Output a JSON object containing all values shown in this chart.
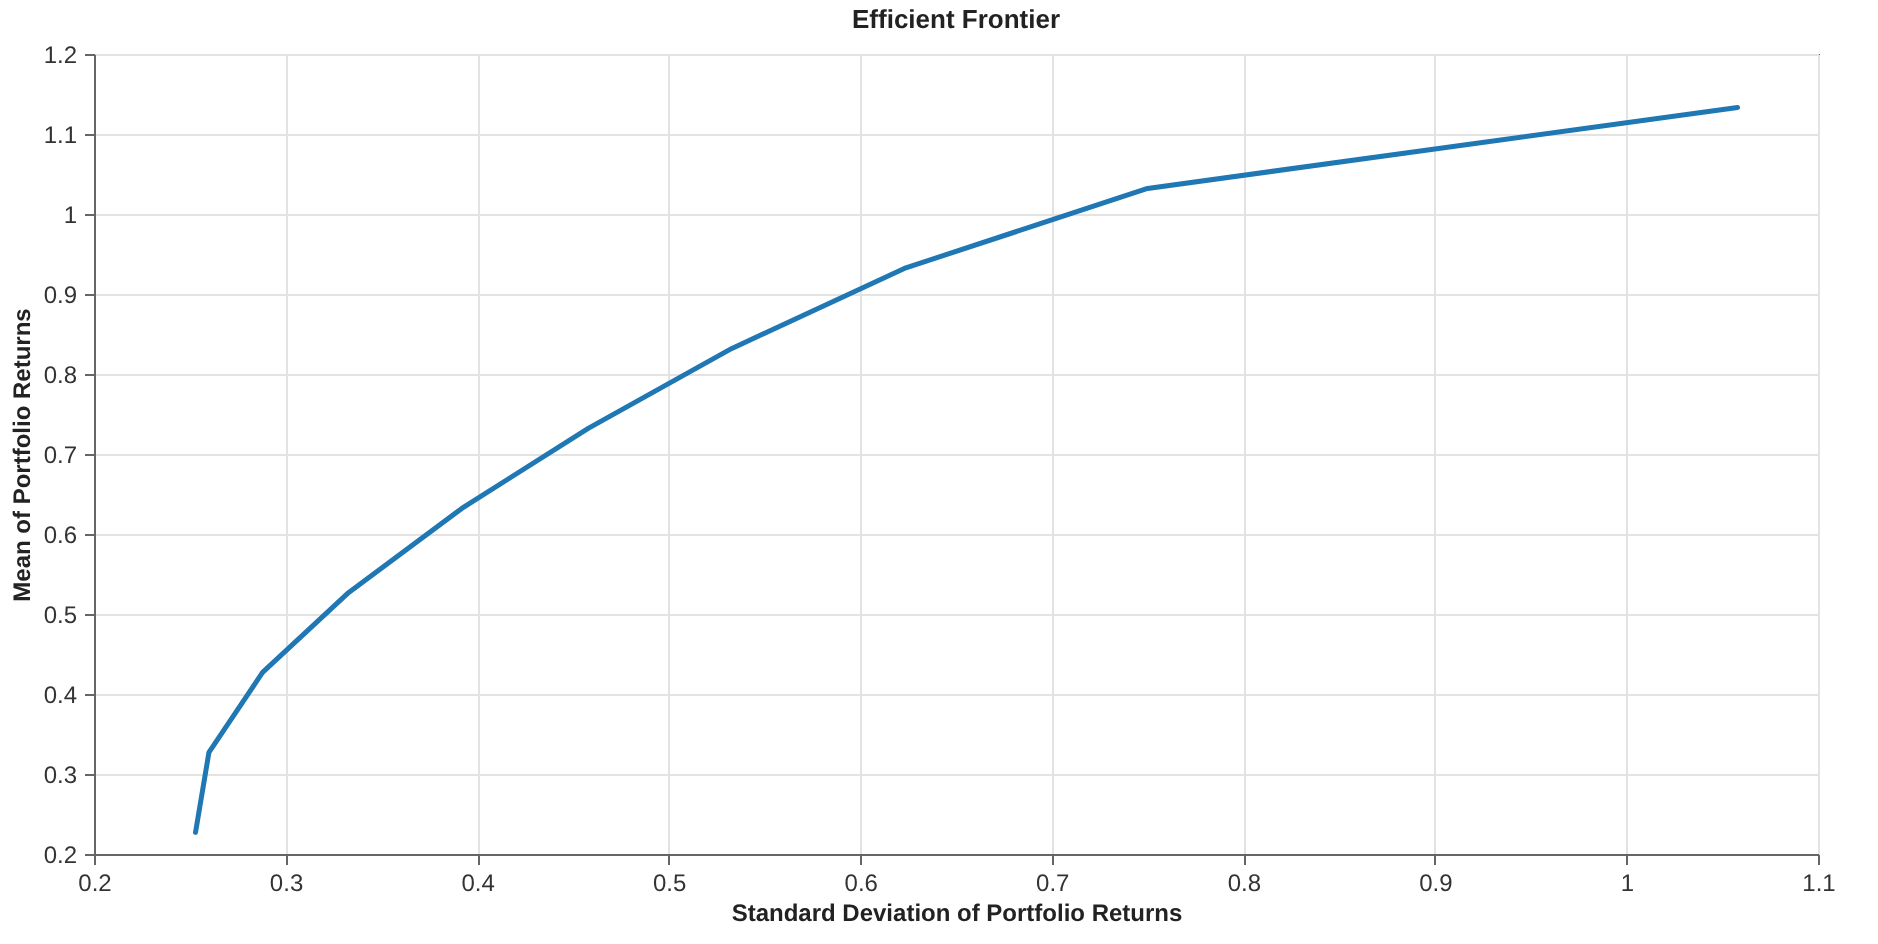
{
  "chart_data": {
    "type": "line",
    "title": "Efficient Frontier",
    "xlabel": "Standard Deviation of Portfolio Returns",
    "ylabel": "Mean of Portfolio Returns",
    "x": [
      0.253,
      0.26,
      0.288,
      0.333,
      0.392,
      0.458,
      0.533,
      0.623,
      0.75,
      1.058
    ],
    "series": [
      {
        "color": "#1f77b4",
        "values": [
          0.227,
          0.327,
          0.427,
          0.527,
          0.632,
          0.732,
          0.832,
          0.932,
          1.032,
          1.133
        ]
      }
    ],
    "xlim": [
      0.2,
      1.1
    ],
    "xticks": [
      0.2,
      0.3,
      0.4,
      0.5,
      0.6,
      0.7,
      0.8,
      0.9,
      1,
      1.1
    ],
    "ylim": [
      0.2,
      1.2
    ],
    "yticks": [
      0.2,
      0.3,
      0.4,
      0.5,
      0.6,
      0.7,
      0.8,
      0.9,
      1,
      1.1,
      1.2
    ],
    "grid": true,
    "marker": "none",
    "line_style": "solid"
  }
}
